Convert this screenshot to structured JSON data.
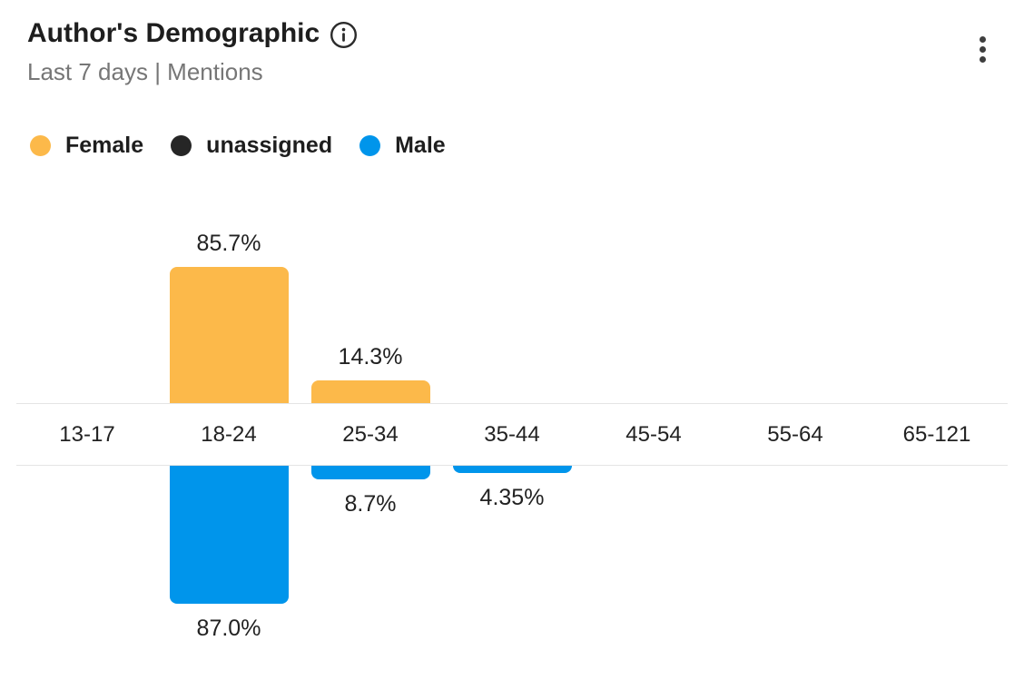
{
  "header": {
    "title": "Author's Demographic",
    "subtitle": "Last 7 days | Mentions",
    "info_icon": "info-circle-icon",
    "menu_icon": "kebab-vertical-icon"
  },
  "legend": {
    "items": [
      {
        "label": "Female",
        "color": "#FCB94A"
      },
      {
        "label": "unassigned",
        "color": "#262626"
      },
      {
        "label": "Male",
        "color": "#0095EB"
      }
    ]
  },
  "chart_data": {
    "type": "bar",
    "orientation": "diverging-vertical",
    "title": "Author's Demographic",
    "subtitle": "Last 7 days | Mentions",
    "unit": "%",
    "categories": [
      "13-17",
      "18-24",
      "25-34",
      "35-44",
      "45-54",
      "55-64",
      "65-121"
    ],
    "series": [
      {
        "name": "Female",
        "direction": "up",
        "color": "#FCB94A",
        "values": [
          0,
          85.7,
          14.3,
          0,
          0,
          0,
          0
        ],
        "labels": [
          "",
          "85.7%",
          "14.3%",
          "",
          "",
          "",
          ""
        ]
      },
      {
        "name": "Male",
        "direction": "down",
        "color": "#0095EB",
        "values": [
          0,
          87.0,
          8.7,
          4.35,
          0,
          0,
          0
        ],
        "labels": [
          "",
          "87.0%",
          "8.7%",
          "4.35%",
          "",
          "",
          ""
        ]
      }
    ],
    "legend_entries": [
      "Female",
      "unassigned",
      "Male"
    ],
    "legend_position": "top-left",
    "value_axis_hidden": true,
    "grid": false,
    "axis_line_color": "#E4E4E4"
  },
  "colors": {
    "axis_line": "#E4E4E4",
    "label_text": "#222222",
    "subtitle_text": "#767676",
    "title_text": "#1E1E1E"
  }
}
